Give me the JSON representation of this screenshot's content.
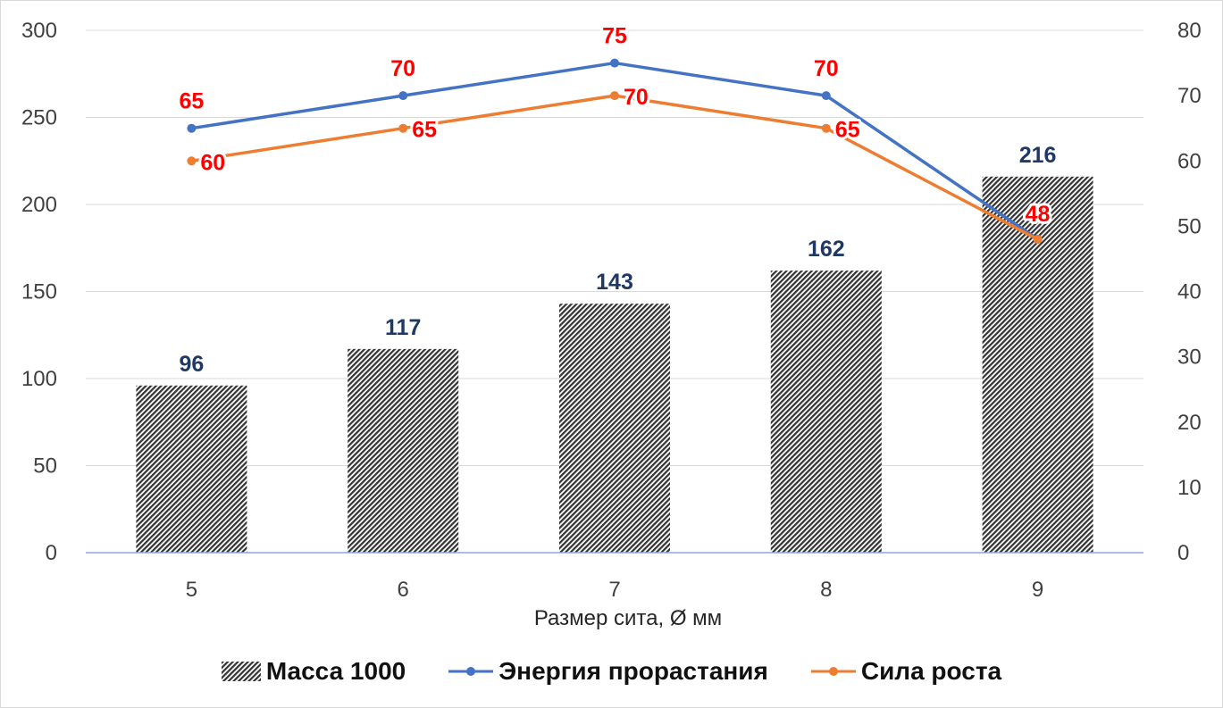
{
  "chart_data": {
    "type": "bar",
    "categories": [
      "5",
      "6",
      "7",
      "8",
      "9"
    ],
    "xlabel": "Размер сита, Ø мм",
    "series": [
      {
        "name": "Масса 1000",
        "type": "bar",
        "axis": "left",
        "values": [
          96,
          117,
          143,
          162,
          216
        ],
        "label_color": "#1f3864"
      },
      {
        "name": "Энергия прорастания",
        "type": "line",
        "axis": "right",
        "values": [
          65,
          70,
          75,
          70,
          48
        ],
        "color": "#4472c4",
        "label_color": "#ff0000",
        "labels": [
          "65",
          "70",
          "75",
          "70",
          ""
        ]
      },
      {
        "name": "Сила роста",
        "type": "line",
        "axis": "right",
        "values": [
          60,
          65,
          70,
          65,
          48
        ],
        "color": "#ed7d31",
        "label_color": "#ff0000",
        "labels": [
          "60",
          "65",
          "70",
          "65",
          "48"
        ]
      }
    ],
    "y_left": {
      "lim": [
        0,
        300
      ],
      "ticks": [
        "0",
        "50",
        "100",
        "150",
        "200",
        "250",
        "300"
      ]
    },
    "y_right": {
      "lim": [
        0,
        80
      ],
      "ticks": [
        "0",
        "10",
        "20",
        "30",
        "40",
        "50",
        "60",
        "70",
        "80"
      ]
    },
    "grid": true,
    "legend_position": "bottom"
  }
}
